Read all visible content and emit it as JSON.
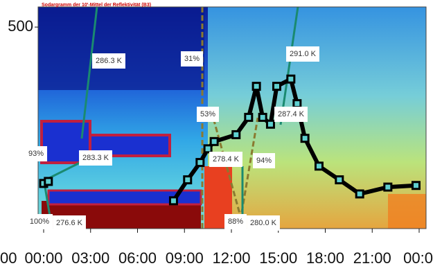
{
  "chart_data": {
    "type": "line",
    "title": "Sodargramm der 10'-Mittel der Reflektivität (B3)",
    "xlim": [
      0,
      24
    ],
    "xticks": [
      {
        "value": -3,
        "label": "00"
      },
      {
        "value": 0,
        "label": "00:00"
      },
      {
        "value": 3,
        "label": "03:00"
      },
      {
        "value": 6,
        "label": "06:00"
      },
      {
        "value": 9,
        "label": "09:00"
      },
      {
        "value": 12,
        "label": "12:00"
      },
      {
        "value": 15,
        "label": "15:00"
      },
      {
        "value": 18,
        "label": "18:00"
      },
      {
        "value": 21,
        "label": "21:00"
      },
      {
        "value": 24,
        "label": "00:0"
      }
    ],
    "ylim": [
      0,
      550
    ],
    "yticks": [
      500
    ],
    "x": [
      0,
      0.3,
      null,
      8.3,
      9.2,
      10.0,
      10.5,
      10.9,
      12.3,
      13.1,
      13.6,
      14.0,
      14.5,
      14.9,
      15.8,
      16.2,
      16.7,
      17.6,
      18.9,
      20.2,
      22.0,
      23.8
    ],
    "series": [
      {
        "color": "#000000",
        "values": [
          112,
          117,
          null,
          69,
          121,
          164,
          198,
          216,
          233,
          276,
          353,
          276,
          259,
          353,
          371,
          310,
          224,
          155,
          121,
          86,
          103,
          107
        ]
      }
    ],
    "annotations": [
      "286.3 K",
      "31%",
      "291.0 K",
      "53%",
      "287.4 K",
      "93%",
      "283.3 K",
      "278.4 K",
      "94%",
      "100%",
      "276.6 K",
      "88%",
      "280.0 K"
    ]
  }
}
